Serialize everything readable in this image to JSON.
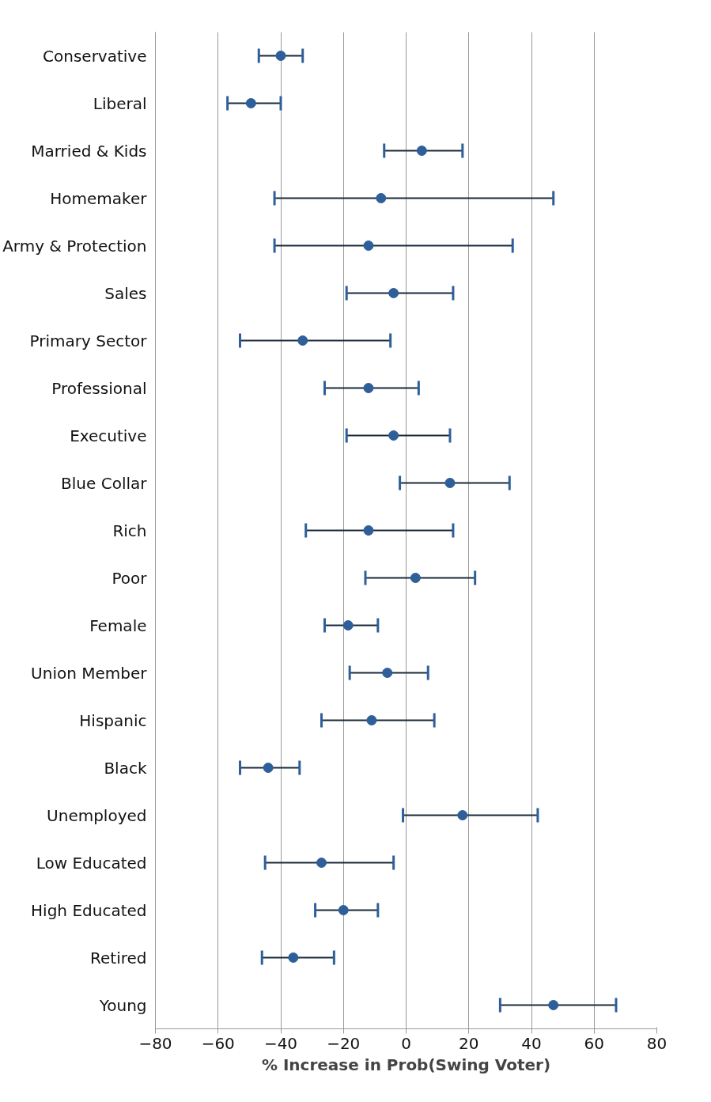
{
  "chart_data": {
    "type": "scatter",
    "orientation": "horizontal",
    "xlabel": "% Increase in Prob(Swing Voter)",
    "categories": [
      "Conservative",
      "Liberal",
      "Married & Kids",
      "Homemaker",
      "Army & Protection",
      "Sales",
      "Primary Sector",
      "Professional",
      "Executive",
      "Blue Collar",
      "Rich",
      "Poor",
      "Female",
      "Union Member",
      "Hispanic",
      "Black",
      "Unemployed",
      "Low Educated",
      "High Educated",
      "Retired",
      "Young"
    ],
    "series": [
      {
        "color": "#2e5f9a",
        "values": [
          -40,
          -49.5,
          5,
          -8,
          -12,
          -4,
          -33,
          -12,
          -4,
          14,
          -12,
          3,
          -18.5,
          -6,
          -11,
          -44,
          18,
          -27,
          -20,
          -36,
          47
        ],
        "errors": [
          [
            -47,
            -33
          ],
          [
            -57,
            -40
          ],
          [
            -7,
            18
          ],
          [
            -42,
            47
          ],
          [
            -42,
            34
          ],
          [
            -19,
            15
          ],
          [
            -53,
            -5
          ],
          [
            -26,
            4
          ],
          [
            -19,
            14
          ],
          [
            -2,
            33
          ],
          [
            -32,
            15
          ],
          [
            -13,
            22
          ],
          [
            -26,
            -9
          ],
          [
            -18,
            7
          ],
          [
            -27,
            9
          ],
          [
            -53,
            -34
          ],
          [
            -1,
            42
          ],
          [
            -45,
            -4
          ],
          [
            -29,
            -9
          ],
          [
            -46,
            -23
          ],
          [
            30,
            67
          ]
        ]
      }
    ],
    "xlim": [
      -80,
      80
    ],
    "xticks": [
      -80,
      -60,
      -40,
      -20,
      0,
      20,
      40,
      60,
      80
    ],
    "grid": "x",
    "marker": "circle"
  }
}
